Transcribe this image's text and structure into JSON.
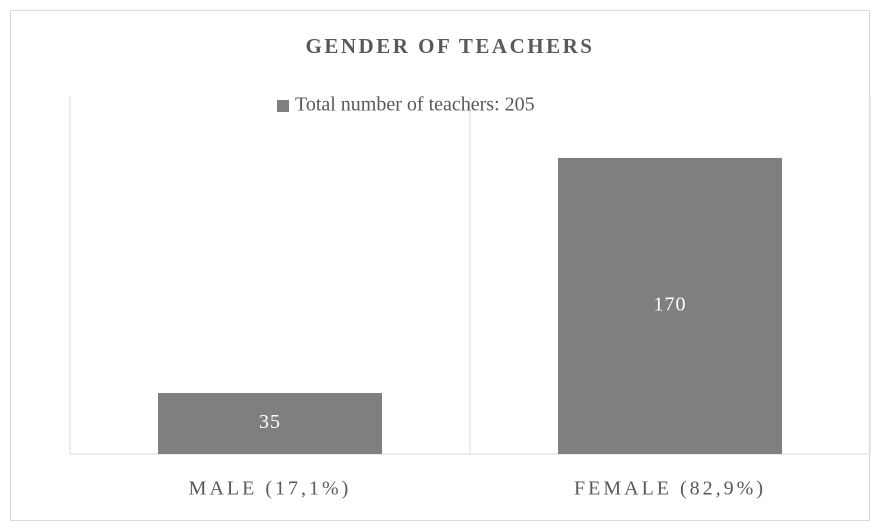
{
  "chart_data": {
    "type": "bar",
    "title": "GENDER OF TEACHERS",
    "categories": [
      "MALE (17,1%)",
      "FEMALE (82,9%)"
    ],
    "series": [
      {
        "name": "Total number of teachers: 205",
        "color": "#7f7f7f",
        "values": [
          35,
          170
        ]
      }
    ],
    "ylim": [
      0,
      205
    ],
    "legend": "top"
  }
}
